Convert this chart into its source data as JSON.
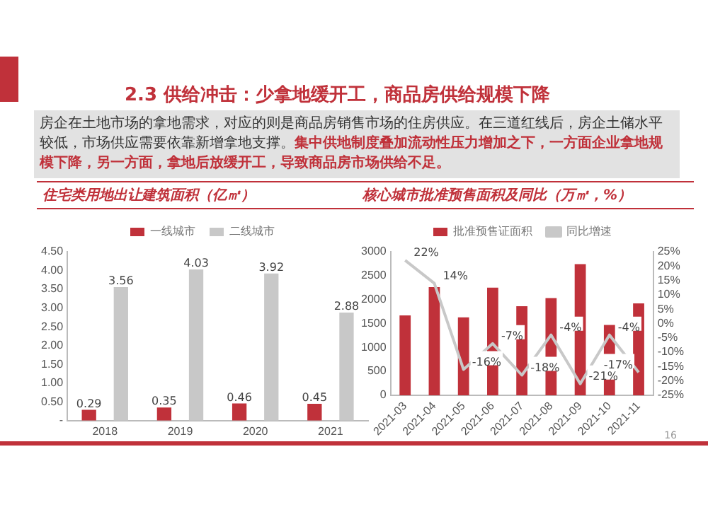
{
  "chart_data": [
    {
      "type": "bar",
      "title": "住宅类用地出让建筑面积（亿㎡）",
      "annotations": [
        "2.3 供给冲击：少拿地缓开工，商品房供给规模下降",
        "房企在土地市场的拿地需求，对应的则是商品房销售市场的住房供应。在三道红线后，房企土储水平较低，市场供应需要依靠新增拿地支撑。",
        "集中供地制度叠加流动性压力增加之下，一方面企业拿地规模下降，另一方面，拿地后放缓开工，导致商品房市场供给不足。"
      ],
      "categories": [
        "2018",
        "2019",
        "2020",
        "2021"
      ],
      "series": [
        {
          "name": "一线城市",
          "color": "#c0313a",
          "values": [
            0.29,
            0.35,
            0.46,
            0.45
          ]
        },
        {
          "name": "二线城市",
          "color": "#c8c8c8",
          "values": [
            3.56,
            4.03,
            3.92,
            2.88
          ]
        }
      ],
      "ylim": [
        0,
        4.5
      ],
      "yticks": [
        {
          "value": 0,
          "label": "-"
        },
        {
          "value": 0.5,
          "label": "0.50"
        },
        {
          "value": 1,
          "label": "1.00"
        },
        {
          "value": 1.5,
          "label": "1.50"
        },
        {
          "value": 2,
          "label": "2.00"
        },
        {
          "value": 2.5,
          "label": "2.50"
        },
        {
          "value": 3,
          "label": "3.00"
        },
        {
          "value": 3.5,
          "label": "3.50"
        },
        {
          "value": 4,
          "label": "4.00"
        },
        {
          "value": 4.5,
          "label": "4.50"
        }
      ],
      "data_labels": true,
      "legend": "top"
    },
    {
      "type": "bar",
      "title": "核心城市批准预售面积及同比（万㎡，%）",
      "annotations": [
        "16"
      ],
      "categories": [
        "2021-03",
        "2021-04",
        "2021-05",
        "2021-06",
        "2021-07",
        "2021-08",
        "2021-09",
        "2021-10",
        "2021-11"
      ],
      "series": [
        {
          "name": "批准预售证面积",
          "type": "bar",
          "color": "#c0313a",
          "values": [
            1670,
            2260,
            1630,
            2250,
            1860,
            2030,
            2740,
            1470,
            1920
          ]
        },
        {
          "name": "同比增速",
          "type": "line",
          "axis": "y2",
          "color": "#c8c8c8",
          "values": [
            22,
            14,
            -16,
            -7,
            -18,
            -4,
            -21,
            -4,
            -17
          ],
          "value_labels": [
            "22%",
            "14%",
            "-16%",
            "-7%",
            "-18%",
            "-4%",
            "-21%",
            "-4%",
            "-17%"
          ]
        }
      ],
      "ylim": [
        0,
        3000
      ],
      "yticks": [
        0,
        500,
        1000,
        1500,
        2000,
        2500,
        3000
      ],
      "y2lim": [
        -25,
        25
      ],
      "y2ticks": [
        {
          "value": -25,
          "label": "-25%"
        },
        {
          "value": -20,
          "label": "-20%"
        },
        {
          "value": -15,
          "label": "-15%"
        },
        {
          "value": -10,
          "label": "-10%"
        },
        {
          "value": -5,
          "label": "-5%"
        },
        {
          "value": 0,
          "label": "0%"
        },
        {
          "value": 5,
          "label": "5%"
        },
        {
          "value": 10,
          "label": "10%"
        },
        {
          "value": 15,
          "label": "15%"
        },
        {
          "value": 20,
          "label": "20%"
        },
        {
          "value": 25,
          "label": "25%"
        }
      ],
      "legend": "top",
      "marker": "none"
    }
  ]
}
